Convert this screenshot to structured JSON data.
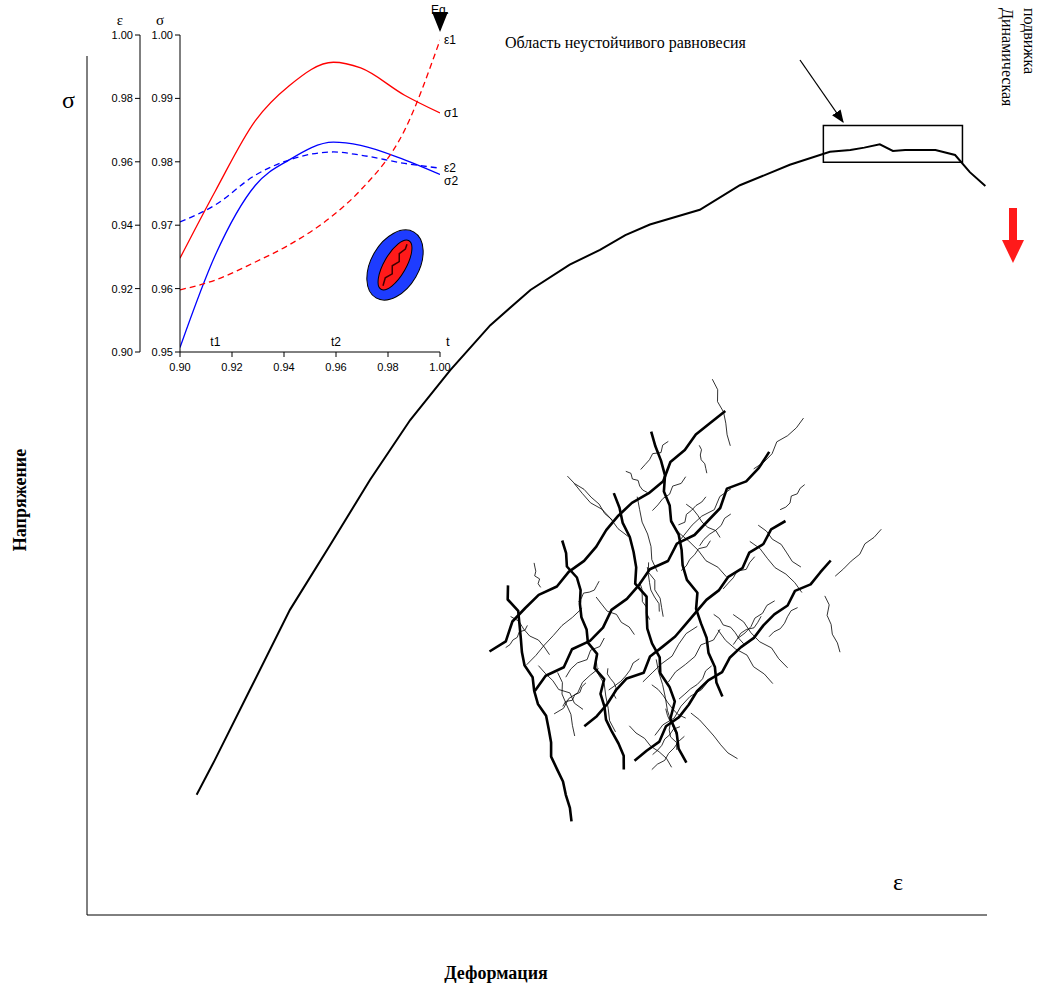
{
  "chart_data": [
    {
      "type": "line",
      "x_label": "Деформация",
      "y_label": "Напряжение",
      "x_symbol": "ε",
      "y_symbol": "σ",
      "xlim": [
        0,
        11
      ],
      "ylim": [
        0,
        10.5
      ],
      "xticks": [
        0,
        1,
        2,
        3,
        4,
        5,
        6,
        7,
        8,
        9,
        10
      ],
      "yticks": [
        0,
        1,
        2,
        3,
        4,
        5,
        6,
        7,
        8,
        9,
        10
      ],
      "tick_labels": false,
      "color": "#000000",
      "x": [
        1.34,
        1.56,
        1.99,
        2.48,
        2.97,
        3.46,
        3.95,
        4.44,
        4.93,
        5.42,
        5.9,
        6.27,
        6.58,
        6.88,
        7.49,
        7.98,
        8.59,
        9.08,
        9.33,
        9.5,
        9.69,
        9.85,
        10,
        10.37,
        10.61,
        10.79,
        10.98
      ],
      "values": [
        1.47,
        1.89,
        2.75,
        3.73,
        4.52,
        5.32,
        6.05,
        6.66,
        7.21,
        7.64,
        7.95,
        8.13,
        8.31,
        8.44,
        8.62,
        8.92,
        9.17,
        9.33,
        9.35,
        9.38,
        9.42,
        9.34,
        9.35,
        9.35,
        9.29,
        9.08,
        8.91
      ],
      "annotations": [
        {
          "text": "Область неустойчивого равновесия",
          "x": [
            9,
            10.7
          ],
          "y": [
            9.2,
            9.65
          ]
        },
        {
          "text": "Динамическая подвижка"
        }
      ]
    },
    {
      "type": "line",
      "x_label": "t",
      "y_label": "σ",
      "y2_label": "ε",
      "xlim": [
        0.9,
        1
      ],
      "xticks": [
        {
          "value": 0.9,
          "label": "0.90"
        },
        0.92,
        0.94,
        0.96,
        0.98,
        {
          "value": 1,
          "label": "1.00"
        }
      ],
      "ylim": [
        0.95,
        1
      ],
      "yticks": [
        0.95,
        0.96,
        0.97,
        0.98,
        0.99,
        {
          "value": 1,
          "label": "1.00"
        }
      ],
      "y2lim": [
        0.9,
        1
      ],
      "y2ticks": [
        {
          "value": 0.9,
          "label": "0.90"
        },
        0.92,
        0.94,
        0.96,
        0.98,
        {
          "value": 1,
          "label": "1.00"
        }
      ],
      "x": [
        0.9,
        0.9136,
        0.929,
        0.942,
        0.959,
        0.9695,
        0.9864,
        1
      ],
      "series": [
        {
          "name": "σ1",
          "color": "#ff0000",
          "line_style": "solid",
          "values": [
            0.9648,
            0.9754,
            0.9865,
            0.992,
            0.9957,
            0.9948,
            0.9905,
            0.9877
          ]
        },
        {
          "name": "σ2",
          "color": "#0000ff",
          "line_style": "solid",
          "values": [
            0.9507,
            0.9653,
            0.9763,
            0.9803,
            0.9831,
            0.9826,
            0.9803,
            0.978
          ]
        },
        {
          "name": "ε1",
          "color": "#ff0000",
          "line_style": "dashed",
          "axis": "y2",
          "values": [
            0.9196,
            0.9227,
            0.9284,
            0.9338,
            0.9432,
            0.9511,
            0.97,
            0.9984
          ]
        },
        {
          "name": "ε2",
          "color": "#0000ff",
          "line_style": "dashed",
          "axis": "y2",
          "values": [
            0.941,
            0.9464,
            0.9558,
            0.9606,
            0.9631,
            0.9621,
            0.9595,
            0.958
          ]
        }
      ],
      "annotations": [
        {
          "text": "t1",
          "x": 0.9136
        },
        {
          "text": "t2",
          "x": 0.96
        },
        {
          "text": "Eq.",
          "x": 1
        }
      ]
    }
  ]
}
